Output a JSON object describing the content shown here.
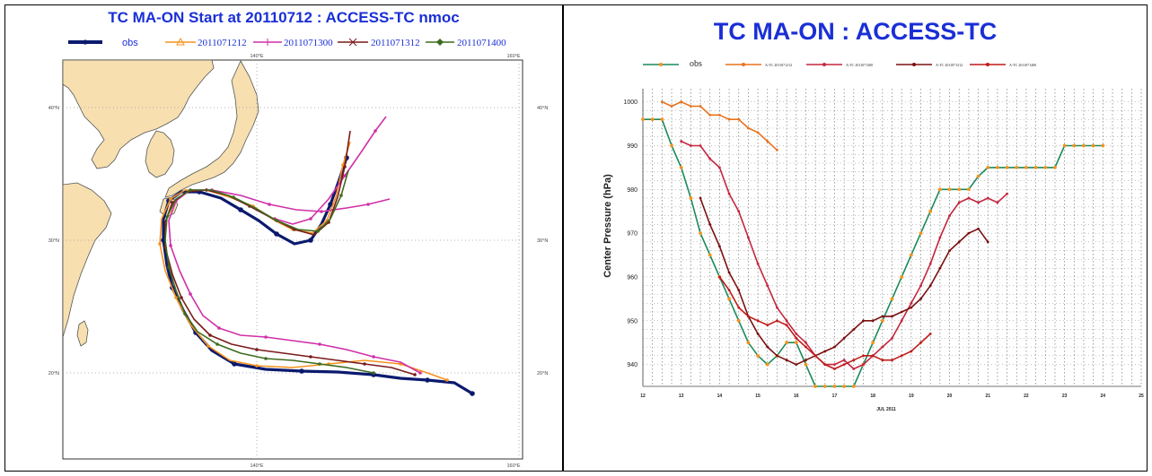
{
  "left_chart": {
    "title": "TC MA-ON Start at 20110712 : ACCESS-TC nmoc",
    "legend": [
      {
        "label": "obs",
        "color": "#0b1a6e",
        "marker": "circle"
      },
      {
        "label": "2011071212",
        "color": "#f5921e",
        "marker": "triangle"
      },
      {
        "label": "2011071300",
        "color": "#d12fa8",
        "marker": "plus"
      },
      {
        "label": "2011071312",
        "color": "#7a1a1a",
        "marker": "x"
      },
      {
        "label": "2011071400",
        "color": "#3d6b1e",
        "marker": "diamond"
      }
    ],
    "lon_labels": [
      "140°E",
      "160°E"
    ],
    "lat_labels": [
      "40°N",
      "30°N",
      "20°N"
    ],
    "land_color": "#f7dfb0"
  },
  "chart_data": {
    "type": "line",
    "title": "TC MA-ON : ACCESS-TC",
    "ylabel": "Center Pressure (hPa)",
    "xlabel": "JUL 2011",
    "xlim": [
      12,
      25
    ],
    "ylim": [
      935,
      1003
    ],
    "yticks": [
      940,
      950,
      960,
      970,
      980,
      990,
      1000
    ],
    "xticks": [
      "12",
      "13",
      "14",
      "15",
      "16",
      "17",
      "18",
      "19",
      "20",
      "21",
      "22",
      "23",
      "24",
      "25"
    ],
    "legend": [
      "obs",
      "A-TC 2011071212",
      "A-TC 2011071300",
      "A-TC 2011071312",
      "A-TC 2011071400"
    ],
    "series": [
      {
        "name": "obs",
        "color": "#1a8a5a",
        "marker_color": "#f5921e",
        "x": [
          12,
          12.25,
          12.5,
          12.75,
          13,
          13.25,
          13.5,
          13.75,
          14,
          14.25,
          14.5,
          14.75,
          15,
          15.25,
          15.5,
          15.75,
          16,
          16.25,
          16.5,
          16.75,
          17,
          17.25,
          17.5,
          17.75,
          18,
          18.25,
          18.5,
          18.75,
          19,
          19.25,
          19.5,
          19.75,
          20,
          20.25,
          20.5,
          20.75,
          21,
          21.25,
          21.5,
          21.75,
          22,
          22.25,
          22.5,
          22.75,
          23,
          23.25,
          23.5,
          23.75,
          24
        ],
        "y": [
          996,
          996,
          996,
          990,
          985,
          978,
          970,
          965,
          960,
          955,
          950,
          945,
          942,
          940,
          942,
          945,
          945,
          940,
          935,
          935,
          935,
          935,
          935,
          940,
          945,
          950,
          955,
          960,
          965,
          970,
          975,
          980,
          980,
          980,
          980,
          983,
          985,
          985,
          985,
          985,
          985,
          985,
          985,
          985,
          990,
          990,
          990,
          990,
          990
        ]
      },
      {
        "name": "A-TC 2011071212",
        "color": "#e8721c",
        "x": [
          12.5,
          12.75,
          13,
          13.25,
          13.5,
          13.75,
          14,
          14.25,
          14.5,
          14.75,
          15,
          15.25,
          15.5
        ],
        "y": [
          1000,
          999,
          1000,
          999,
          999,
          997,
          997,
          996,
          996,
          994,
          993,
          991,
          989
        ]
      },
      {
        "name": "A-TC 2011071300",
        "color": "#c4263f",
        "x": [
          13,
          13.25,
          13.5,
          13.75,
          14,
          14.25,
          14.5,
          14.75,
          15,
          15.25,
          15.5,
          15.75,
          16,
          16.25,
          16.5,
          16.75,
          17,
          17.25,
          17.5,
          17.75,
          18,
          18.25,
          18.5,
          18.75,
          19,
          19.25,
          19.5,
          19.75,
          20,
          20.25,
          20.5,
          20.75,
          21,
          21.25,
          21.5
        ],
        "y": [
          991,
          990,
          990,
          987,
          985,
          979,
          975,
          969,
          963,
          958,
          953,
          950,
          947,
          945,
          942,
          940,
          940,
          941,
          939,
          940,
          942,
          944,
          946,
          950,
          954,
          958,
          963,
          969,
          974,
          977,
          978,
          977,
          978,
          977,
          979
        ]
      },
      {
        "name": "A-TC 2011071312",
        "color": "#7a1010",
        "x": [
          13.5,
          13.75,
          14,
          14.25,
          14.5,
          14.75,
          15,
          15.25,
          15.5,
          15.75,
          16,
          16.25,
          16.5,
          16.75,
          17,
          17.25,
          17.5,
          17.75,
          18,
          18.25,
          18.5,
          18.75,
          19,
          19.25,
          19.5,
          19.75,
          20,
          20.25,
          20.5,
          20.75,
          21
        ],
        "y": [
          978,
          972,
          967,
          961,
          957,
          951,
          947,
          944,
          942,
          941,
          940,
          941,
          942,
          943,
          944,
          946,
          948,
          950,
          950,
          951,
          951,
          952,
          953,
          955,
          958,
          962,
          966,
          968,
          970,
          971,
          968
        ]
      },
      {
        "name": "A-TC 2011071400",
        "color": "#c01a1a",
        "x": [
          14,
          14.25,
          14.5,
          14.75,
          15,
          15.25,
          15.5,
          15.75,
          16,
          16.25,
          16.5,
          16.75,
          17,
          17.25,
          17.5,
          17.75,
          18,
          18.25,
          18.5,
          18.75,
          19,
          19.25,
          19.5
        ],
        "y": [
          960,
          957,
          953,
          951,
          950,
          949,
          950,
          949,
          946,
          944,
          942,
          940,
          939,
          940,
          941,
          942,
          942,
          941,
          941,
          942,
          943,
          945,
          947
        ]
      }
    ]
  }
}
